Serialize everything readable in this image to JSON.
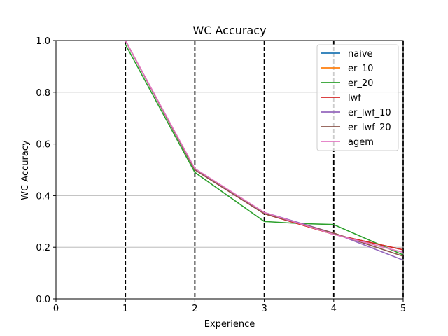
{
  "chart_data": {
    "type": "line",
    "title": "WC Accuracy",
    "xlabel": "Experience",
    "ylabel": "WC Accuracy",
    "xlim": [
      0,
      5
    ],
    "ylim": [
      0,
      1.0
    ],
    "xticks": [
      "0",
      "1",
      "2",
      "3",
      "4",
      "5"
    ],
    "yticks": [
      "0.0",
      "0.2",
      "0.4",
      "0.6",
      "0.8",
      "1.0"
    ],
    "grid": "y-axis horizontal gridlines",
    "legend_position": "upper right",
    "vertical_markers": [
      1,
      2,
      3,
      4,
      5
    ],
    "x": [
      1,
      2,
      3,
      4,
      5
    ],
    "series": [
      {
        "name": "naive",
        "color": "#1f77b4",
        "values": [
          1.0,
          0.5,
          0.33,
          0.25,
          0.19
        ]
      },
      {
        "name": "er_10",
        "color": "#ff7f0e",
        "values": [
          1.0,
          0.5,
          0.33,
          0.25,
          0.19
        ]
      },
      {
        "name": "er_20",
        "color": "#2ca02c",
        "x": [
          1,
          2,
          3,
          3.5,
          4,
          5
        ],
        "values": [
          0.985,
          0.49,
          0.3,
          0.292,
          0.288,
          0.17
        ]
      },
      {
        "name": "lwf",
        "color": "#d62728",
        "values": [
          1.0,
          0.5,
          0.33,
          0.25,
          0.19
        ]
      },
      {
        "name": "er_lwf_10",
        "color": "#9467bd",
        "values": [
          1.0,
          0.5,
          0.335,
          0.255,
          0.15
        ]
      },
      {
        "name": "er_lwf_20",
        "color": "#8c564b",
        "values": [
          1.0,
          0.5,
          0.33,
          0.255,
          0.165
        ]
      },
      {
        "name": "agem",
        "color": "#e377c2",
        "values": [
          1.0,
          0.505,
          0.335,
          0.25,
          0.18
        ]
      }
    ]
  }
}
